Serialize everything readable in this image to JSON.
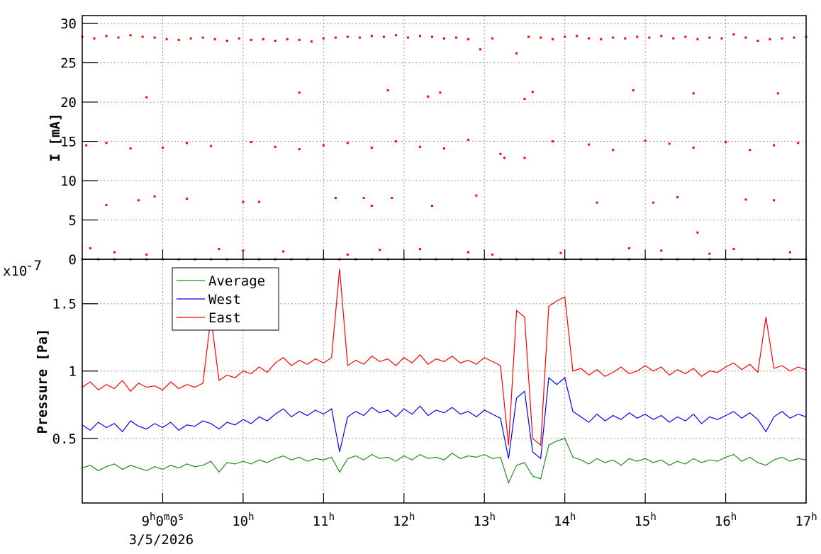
{
  "chart_data": [
    {
      "type": "scatter",
      "y_label": "I [mA]",
      "color": "#ff0000",
      "grid": true,
      "ylim": [
        0,
        31
      ],
      "yticks": [
        0,
        5,
        10,
        15,
        20,
        25,
        30
      ],
      "x": [
        8.0,
        8.15,
        8.3,
        8.45,
        8.6,
        8.75,
        8.9,
        9.05,
        9.2,
        9.35,
        9.5,
        9.65,
        9.8,
        9.95,
        10.1,
        10.25,
        10.4,
        10.55,
        10.7,
        10.85,
        11.0,
        11.15,
        11.3,
        11.45,
        11.6,
        11.75,
        11.9,
        12.05,
        12.2,
        12.35,
        12.5,
        12.65,
        12.8,
        12.95,
        13.1,
        13.4,
        13.55,
        13.7,
        13.85,
        14.0,
        14.15,
        14.3,
        14.45,
        14.6,
        14.75,
        14.9,
        15.05,
        15.2,
        15.35,
        15.5,
        15.65,
        15.8,
        15.95,
        16.1,
        16.25,
        16.4,
        16.55,
        16.7,
        16.85,
        17.0,
        8.8,
        10.7,
        11.8,
        12.3,
        12.45,
        13.5,
        13.6,
        14.85,
        15.6,
        16.65,
        8.05,
        8.3,
        8.6,
        9.0,
        9.3,
        9.6,
        10.1,
        10.4,
        10.7,
        11.0,
        11.3,
        11.6,
        11.9,
        12.2,
        12.5,
        12.8,
        13.2,
        13.25,
        13.5,
        13.85,
        14.3,
        14.6,
        15.0,
        15.3,
        15.6,
        16.0,
        16.3,
        16.6,
        16.9,
        8.3,
        8.7,
        8.9,
        9.3,
        10.0,
        10.2,
        11.15,
        11.5,
        11.6,
        11.85,
        12.35,
        12.9,
        14.4,
        15.1,
        15.4,
        16.25,
        16.6,
        8.1,
        8.4,
        8.8,
        9.7,
        10.0,
        10.5,
        11.3,
        11.7,
        12.2,
        12.8,
        13.1,
        13.95,
        14.8,
        15.2,
        15.8,
        16.1,
        16.8,
        15.65,
        8.0,
        8.2,
        8.4,
        8.6,
        8.8,
        9.0,
        9.2,
        9.4,
        9.6,
        9.8,
        10.0,
        10.2,
        10.4,
        10.6,
        10.8,
        11.0,
        11.2,
        11.4,
        11.6,
        11.8,
        12.0,
        12.2,
        12.4,
        12.6,
        12.8,
        13.0,
        13.2,
        13.4,
        13.6,
        13.8,
        14.0,
        14.2,
        14.4,
        14.6,
        14.8,
        15.0,
        15.2,
        15.4,
        15.6,
        15.8,
        16.0,
        16.2,
        16.4,
        16.6,
        16.8,
        17.0
      ],
      "values": [
        28.3,
        28.1,
        28.4,
        28.2,
        28.5,
        28.3,
        28.2,
        28.0,
        27.9,
        28.1,
        28.2,
        28.0,
        27.8,
        28.1,
        27.9,
        28.0,
        27.8,
        28.0,
        27.9,
        27.7,
        28.1,
        28.2,
        28.3,
        28.2,
        28.4,
        28.3,
        28.5,
        28.2,
        28.4,
        28.3,
        28.1,
        28.2,
        28.0,
        26.7,
        28.1,
        26.2,
        28.3,
        28.2,
        28.0,
        28.3,
        28.4,
        28.1,
        28.0,
        28.2,
        28.1,
        28.3,
        28.2,
        28.4,
        28.1,
        28.3,
        28.0,
        28.2,
        28.1,
        28.6,
        28.2,
        27.8,
        28.0,
        28.1,
        28.2,
        28.3,
        20.6,
        21.2,
        21.5,
        20.7,
        21.2,
        20.4,
        21.3,
        21.5,
        21.1,
        21.1,
        14.5,
        14.8,
        14.1,
        14.2,
        14.8,
        14.4,
        14.9,
        14.3,
        14.0,
        14.5,
        14.8,
        14.2,
        15.0,
        14.3,
        14.1,
        15.2,
        13.4,
        12.9,
        12.9,
        15.0,
        14.6,
        13.9,
        15.1,
        14.7,
        14.2,
        14.9,
        13.9,
        14.5,
        14.8,
        6.9,
        7.5,
        8.0,
        7.7,
        7.3,
        7.3,
        7.8,
        7.8,
        6.8,
        7.8,
        6.8,
        8.1,
        7.2,
        7.2,
        7.9,
        7.6,
        7.5,
        1.4,
        0.9,
        0.6,
        1.3,
        1.1,
        1.0,
        0.6,
        1.2,
        1.3,
        0.9,
        0.6,
        0.8,
        1.4,
        1.1,
        0.7,
        1.3,
        0.9,
        3.4,
        0,
        0,
        0,
        0,
        0,
        0,
        0,
        0,
        0,
        0,
        0,
        0,
        0,
        0,
        0,
        0,
        0,
        0,
        0,
        0,
        0,
        0,
        0,
        0,
        0,
        0,
        0,
        0,
        0,
        0,
        0,
        0,
        0,
        0,
        0,
        0,
        0,
        0,
        0,
        0,
        0,
        0,
        0,
        0,
        0,
        0
      ]
    },
    {
      "type": "line",
      "y_label": "Pressure [Pa]",
      "y_multiplier": "x10",
      "y_multiplier_exponent": "-7",
      "x_date_label": "3/5/2026",
      "grid": true,
      "legend": "upper left",
      "xlim": [
        8,
        17
      ],
      "xticks": [
        {
          "value": 9,
          "label": "9h0m0s"
        },
        {
          "value": 10,
          "label": "10h"
        },
        {
          "value": 11,
          "label": "11h"
        },
        {
          "value": 12,
          "label": "12h"
        },
        {
          "value": 13,
          "label": "13h"
        },
        {
          "value": 14,
          "label": "14h"
        },
        {
          "value": 15,
          "label": "15h"
        },
        {
          "value": 16,
          "label": "16h"
        },
        {
          "value": 17,
          "label": "17h"
        }
      ],
      "ylim": [
        0.02,
        1.83
      ],
      "yticks": [
        0.5,
        1,
        1.5
      ],
      "x": [
        8.0,
        8.1,
        8.2,
        8.3,
        8.4,
        8.5,
        8.6,
        8.7,
        8.8,
        8.9,
        9.0,
        9.1,
        9.2,
        9.3,
        9.4,
        9.5,
        9.6,
        9.7,
        9.8,
        9.9,
        10.0,
        10.1,
        10.2,
        10.3,
        10.4,
        10.5,
        10.6,
        10.7,
        10.8,
        10.9,
        11.0,
        11.1,
        11.2,
        11.3,
        11.4,
        11.5,
        11.6,
        11.7,
        11.8,
        11.9,
        12.0,
        12.1,
        12.2,
        12.3,
        12.4,
        12.5,
        12.6,
        12.7,
        12.8,
        12.9,
        13.0,
        13.1,
        13.2,
        13.3,
        13.4,
        13.5,
        13.6,
        13.7,
        13.8,
        13.9,
        14.0,
        14.1,
        14.2,
        14.3,
        14.4,
        14.5,
        14.6,
        14.7,
        14.8,
        14.9,
        15.0,
        15.1,
        15.2,
        15.3,
        15.4,
        15.5,
        15.6,
        15.7,
        15.8,
        15.9,
        16.0,
        16.1,
        16.2,
        16.3,
        16.4,
        16.5,
        16.6,
        16.7,
        16.8,
        16.9,
        17.0
      ],
      "series": [
        {
          "name": "Average",
          "color": "#228b22",
          "values": [
            0.28,
            0.3,
            0.26,
            0.29,
            0.31,
            0.27,
            0.3,
            0.28,
            0.26,
            0.29,
            0.27,
            0.3,
            0.28,
            0.31,
            0.29,
            0.3,
            0.33,
            0.25,
            0.32,
            0.31,
            0.33,
            0.31,
            0.34,
            0.32,
            0.35,
            0.37,
            0.34,
            0.36,
            0.33,
            0.35,
            0.34,
            0.36,
            0.25,
            0.35,
            0.37,
            0.34,
            0.38,
            0.35,
            0.36,
            0.33,
            0.37,
            0.34,
            0.38,
            0.35,
            0.36,
            0.34,
            0.39,
            0.35,
            0.37,
            0.36,
            0.38,
            0.35,
            0.36,
            0.17,
            0.3,
            0.32,
            0.22,
            0.2,
            0.45,
            0.48,
            0.5,
            0.36,
            0.34,
            0.31,
            0.35,
            0.32,
            0.34,
            0.3,
            0.35,
            0.33,
            0.35,
            0.32,
            0.34,
            0.3,
            0.33,
            0.31,
            0.35,
            0.32,
            0.34,
            0.33,
            0.36,
            0.38,
            0.33,
            0.36,
            0.32,
            0.3,
            0.34,
            0.36,
            0.33,
            0.35,
            0.34
          ]
        },
        {
          "name": "West",
          "color": "#0000ff",
          "values": [
            0.6,
            0.56,
            0.62,
            0.58,
            0.61,
            0.55,
            0.63,
            0.59,
            0.57,
            0.61,
            0.58,
            0.62,
            0.56,
            0.6,
            0.59,
            0.63,
            0.61,
            0.57,
            0.62,
            0.6,
            0.64,
            0.61,
            0.66,
            0.63,
            0.68,
            0.72,
            0.66,
            0.7,
            0.67,
            0.71,
            0.68,
            0.72,
            0.4,
            0.66,
            0.7,
            0.67,
            0.73,
            0.69,
            0.71,
            0.66,
            0.72,
            0.68,
            0.74,
            0.67,
            0.71,
            0.69,
            0.73,
            0.68,
            0.7,
            0.66,
            0.71,
            0.68,
            0.65,
            0.35,
            0.8,
            0.85,
            0.4,
            0.35,
            0.95,
            0.9,
            0.95,
            0.7,
            0.66,
            0.62,
            0.68,
            0.63,
            0.67,
            0.64,
            0.69,
            0.65,
            0.68,
            0.64,
            0.67,
            0.62,
            0.66,
            0.63,
            0.68,
            0.61,
            0.66,
            0.64,
            0.67,
            0.7,
            0.65,
            0.69,
            0.64,
            0.55,
            0.66,
            0.7,
            0.65,
            0.68,
            0.66
          ]
        },
        {
          "name": "East",
          "color": "#ff0000",
          "values": [
            0.88,
            0.92,
            0.86,
            0.9,
            0.87,
            0.93,
            0.85,
            0.91,
            0.88,
            0.89,
            0.86,
            0.92,
            0.87,
            0.9,
            0.88,
            0.91,
            1.4,
            0.93,
            0.97,
            0.95,
            1.0,
            0.98,
            1.03,
            0.99,
            1.06,
            1.1,
            1.04,
            1.08,
            1.05,
            1.09,
            1.06,
            1.1,
            1.76,
            1.04,
            1.08,
            1.05,
            1.11,
            1.07,
            1.09,
            1.04,
            1.1,
            1.06,
            1.12,
            1.05,
            1.09,
            1.07,
            1.11,
            1.06,
            1.08,
            1.05,
            1.1,
            1.07,
            1.04,
            0.45,
            1.45,
            1.4,
            0.5,
            0.45,
            1.48,
            1.52,
            1.55,
            1.0,
            1.02,
            0.97,
            1.01,
            0.96,
            0.99,
            1.03,
            0.98,
            1.0,
            1.04,
            1.0,
            1.03,
            0.97,
            1.01,
            0.98,
            1.02,
            0.96,
            1.0,
            0.99,
            1.03,
            1.06,
            1.01,
            1.05,
            0.99,
            1.4,
            1.02,
            1.04,
            1.0,
            1.03,
            1.01
          ]
        }
      ]
    }
  ]
}
